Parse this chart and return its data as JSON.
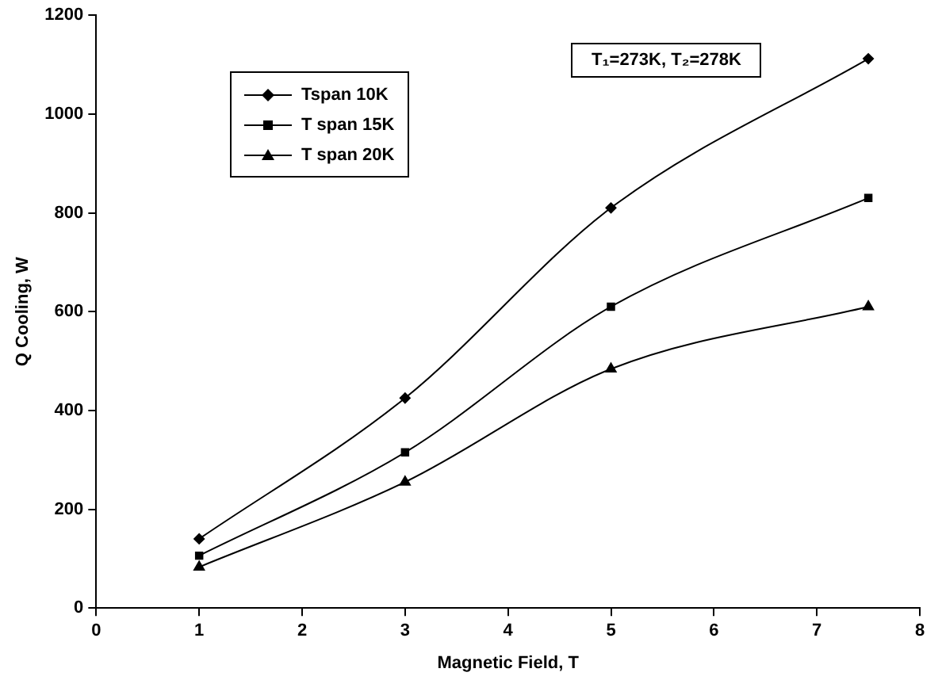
{
  "chart_data": {
    "type": "line",
    "xlabel": "Magnetic Field, T",
    "ylabel": "Q Cooling, W",
    "x": [
      1,
      3,
      5,
      7.5
    ],
    "series": [
      {
        "name": "Tspan 10K",
        "color": "#000000",
        "marker": "diamond",
        "values": [
          140,
          425,
          810,
          1112
        ]
      },
      {
        "name": "T span 15K",
        "color": "#000000",
        "marker": "square",
        "values": [
          106,
          315,
          610,
          830
        ]
      },
      {
        "name": "T span 20K",
        "color": "#000000",
        "marker": "triangle",
        "values": [
          83,
          255,
          484,
          610
        ]
      }
    ],
    "xlim": [
      0,
      8
    ],
    "xticks": [
      0,
      1,
      2,
      3,
      4,
      5,
      6,
      7,
      8
    ],
    "ylim": [
      0,
      1200
    ],
    "yticks": [
      0,
      200,
      400,
      600,
      800,
      1000,
      1200
    ],
    "grid": false,
    "legend": "top left",
    "line_style": "solid",
    "annotations": [
      "T₁=273K, T₂=278K"
    ]
  }
}
